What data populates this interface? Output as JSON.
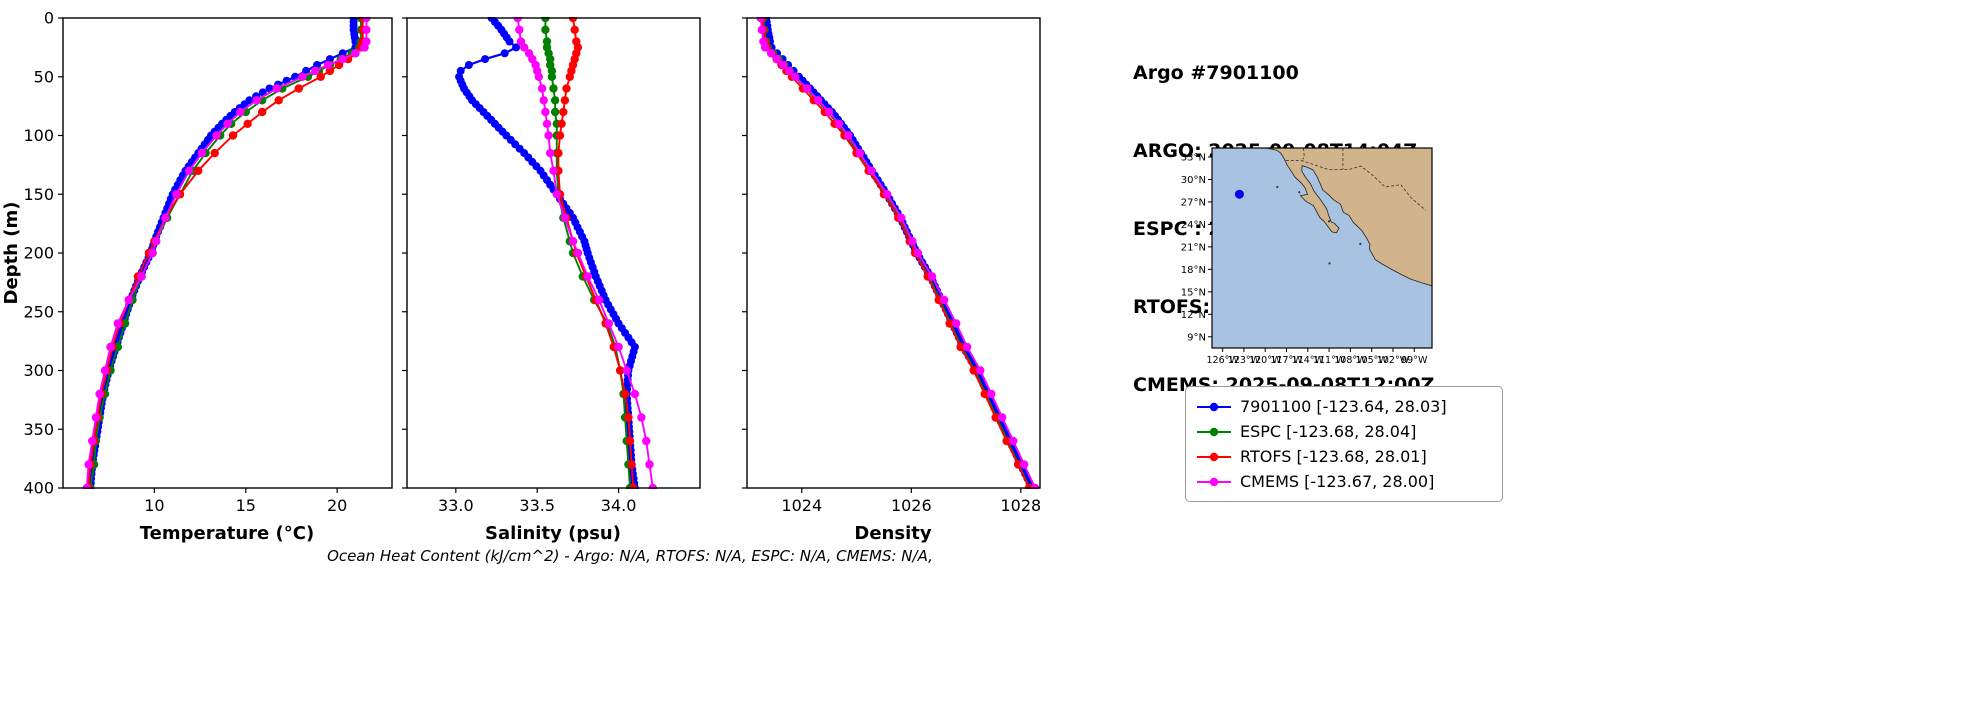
{
  "header": {
    "title": "Argo #7901100",
    "lines": [
      "ARGO: 2025-09-08T14:04Z",
      "ESPC : 2025-09-08T15:00Z",
      "RTOFS: 2025-09-08T12:00Z",
      "CMEMS: 2025-09-08T12:00Z"
    ]
  },
  "footer": {
    "note": "Ocean Heat Content (kJ/cm^2) - Argo: N/A,  RTOFS: N/A,  ESPC: N/A,  CMEMS: N/A,"
  },
  "legend": {
    "entries": [
      {
        "label": "7901100 [-123.64, 28.03]",
        "color": "#0000ff"
      },
      {
        "label": "ESPC [-123.68, 28.04]",
        "color": "#008000"
      },
      {
        "label": "RTOFS [-123.68, 28.01]",
        "color": "#ff0000"
      },
      {
        "label": "CMEMS [-123.67, 28.00]",
        "color": "#ff00ff"
      }
    ]
  },
  "map": {
    "ocean_color": "#a8c3e2",
    "land_color": "#d2b48c",
    "extent": {
      "lon": [
        -127.5,
        -96.5
      ],
      "lat": [
        7.5,
        34.2
      ]
    },
    "marker": {
      "lon": -123.64,
      "lat": 28.03,
      "color": "#0000ee"
    },
    "lat_ticks": [
      {
        "label": "33°N",
        "value": 33
      },
      {
        "label": "30°N",
        "value": 30
      },
      {
        "label": "27°N",
        "value": 27
      },
      {
        "label": "24°N",
        "value": 24
      },
      {
        "label": "21°N",
        "value": 21
      },
      {
        "label": "18°N",
        "value": 18
      },
      {
        "label": "15°N",
        "value": 15
      },
      {
        "label": "12°N",
        "value": 12
      },
      {
        "label": "9°N",
        "value": 9
      }
    ],
    "lon_ticks": [
      {
        "label": "126°W",
        "value": -126
      },
      {
        "label": "123°W",
        "value": -123
      },
      {
        "label": "120°W",
        "value": -120
      },
      {
        "label": "117°W",
        "value": -117
      },
      {
        "label": "114°W",
        "value": -114
      },
      {
        "label": "111°W",
        "value": -111
      },
      {
        "label": "108°W",
        "value": -108
      },
      {
        "label": "105°W",
        "value": -105
      },
      {
        "label": "102°W",
        "value": -102
      },
      {
        "label": "99°W",
        "value": -99
      }
    ]
  },
  "chart_data": {
    "type": "line",
    "ylabel": "Depth (m)",
    "ylim": [
      0,
      400
    ],
    "depth_ticks": [
      0,
      50,
      100,
      150,
      200,
      250,
      300,
      350,
      400
    ],
    "depth_m": [
      0,
      10,
      20,
      25,
      30,
      35,
      40,
      45,
      50,
      60,
      70,
      80,
      90,
      100,
      115,
      130,
      150,
      170,
      190,
      200,
      220,
      240,
      260,
      280,
      300,
      320,
      340,
      360,
      380,
      400
    ],
    "grid": false,
    "legend_position": "right",
    "panels": [
      {
        "id": "temperature",
        "xlabel": "Temperature (°C)",
        "xlim": [
          5.0,
          23.0
        ],
        "xticks": [
          "10",
          "15",
          "20"
        ],
        "series": [
          {
            "name": "7901100",
            "color": "#0000ff",
            "values": [
              20.9,
              20.9,
              21.0,
              21.0,
              20.3,
              19.6,
              18.9,
              18.3,
              17.7,
              16.3,
              15.2,
              14.4,
              13.7,
              13.1,
              12.4,
              11.7,
              11.0,
              10.5,
              10.0,
              9.8,
              9.2,
              8.7,
              8.3,
              7.9,
              7.5,
              7.2,
              7.0,
              6.8,
              6.6,
              6.5
            ]
          },
          {
            "name": "ESPC",
            "color": "#008000",
            "values": [
              21.3,
              21.3,
              21.3,
              21.2,
              20.8,
              20.2,
              19.6,
              19.0,
              18.4,
              17.0,
              15.9,
              15.0,
              14.2,
              13.6,
              12.8,
              12.1,
              11.4,
              10.7,
              10.1,
              9.9,
              9.3,
              8.8,
              8.4,
              8.0,
              7.6,
              7.3,
              7.0,
              6.8,
              6.7,
              6.5
            ]
          },
          {
            "name": "RTOFS",
            "color": "#ff0000",
            "values": [
              21.4,
              21.4,
              21.4,
              21.3,
              21.0,
              20.6,
              20.1,
              19.6,
              19.1,
              17.9,
              16.8,
              15.9,
              15.1,
              14.3,
              13.3,
              12.4,
              11.4,
              10.6,
              10.0,
              9.7,
              9.1,
              8.6,
              8.1,
              7.7,
              7.4,
              7.1,
              6.9,
              6.7,
              6.5,
              6.4
            ]
          },
          {
            "name": "CMEMS",
            "color": "#ff00ff",
            "values": [
              21.6,
              21.6,
              21.6,
              21.5,
              21.0,
              20.3,
              19.5,
              18.8,
              18.1,
              16.7,
              15.6,
              14.7,
              14.0,
              13.4,
              12.6,
              11.9,
              11.2,
              10.6,
              10.1,
              9.9,
              9.3,
              8.6,
              8.0,
              7.6,
              7.3,
              7.0,
              6.8,
              6.6,
              6.4,
              6.3
            ]
          }
        ]
      },
      {
        "id": "salinity",
        "xlabel": "Salinity (psu)",
        "xlim": [
          32.7,
          34.5
        ],
        "xticks": [
          "33.0",
          "33.5",
          "34.0"
        ],
        "series": [
          {
            "name": "7901100",
            "color": "#0000ff",
            "values": [
              33.22,
              33.28,
              33.33,
              33.37,
              33.3,
              33.18,
              33.08,
              33.03,
              33.02,
              33.05,
              33.1,
              33.17,
              33.24,
              33.31,
              33.42,
              33.52,
              33.62,
              33.72,
              33.79,
              33.81,
              33.86,
              33.92,
              34.0,
              34.1,
              34.06,
              34.05,
              34.06,
              34.07,
              34.08,
              34.1
            ]
          },
          {
            "name": "ESPC",
            "color": "#008000",
            "values": [
              33.55,
              33.55,
              33.56,
              33.56,
              33.57,
              33.58,
              33.58,
              33.59,
              33.59,
              33.6,
              33.61,
              33.61,
              33.62,
              33.62,
              33.62,
              33.62,
              33.63,
              33.66,
              33.7,
              33.72,
              33.78,
              33.85,
              33.93,
              33.98,
              34.01,
              34.03,
              34.04,
              34.05,
              34.06,
              34.07
            ]
          },
          {
            "name": "RTOFS",
            "color": "#ff0000",
            "values": [
              33.72,
              33.73,
              33.74,
              33.75,
              33.74,
              33.73,
              33.72,
              33.71,
              33.7,
              33.68,
              33.67,
              33.66,
              33.65,
              33.64,
              33.63,
              33.63,
              33.64,
              33.68,
              33.72,
              33.74,
              33.8,
              33.86,
              33.92,
              33.97,
              34.01,
              34.04,
              34.06,
              34.07,
              34.08,
              34.09
            ]
          },
          {
            "name": "CMEMS",
            "color": "#ff00ff",
            "values": [
              33.38,
              33.39,
              33.4,
              33.42,
              33.45,
              33.47,
              33.49,
              33.5,
              33.51,
              33.53,
              33.54,
              33.55,
              33.56,
              33.57,
              33.58,
              33.6,
              33.62,
              33.67,
              33.72,
              33.75,
              33.81,
              33.88,
              33.94,
              34.0,
              34.05,
              34.1,
              34.14,
              34.17,
              34.19,
              34.21
            ]
          }
        ]
      },
      {
        "id": "density",
        "xlabel": "Density",
        "xlim": [
          1023.0,
          1028.35
        ],
        "xticks": [
          "1024",
          "1026",
          "1028"
        ],
        "series": [
          {
            "name": "7901100",
            "color": "#0000ff",
            "values": [
              1023.35,
              1023.38,
              1023.42,
              1023.45,
              1023.55,
              1023.65,
              1023.75,
              1023.85,
              1023.95,
              1024.15,
              1024.35,
              1024.55,
              1024.72,
              1024.88,
              1025.08,
              1025.28,
              1025.55,
              1025.8,
              1026.0,
              1026.1,
              1026.35,
              1026.55,
              1026.75,
              1026.95,
              1027.2,
              1027.4,
              1027.6,
              1027.8,
              1028.0,
              1028.2
            ]
          },
          {
            "name": "ESPC",
            "color": "#008000",
            "values": [
              1023.3,
              1023.32,
              1023.35,
              1023.38,
              1023.48,
              1023.58,
              1023.68,
              1023.78,
              1023.88,
              1024.08,
              1024.28,
              1024.48,
              1024.66,
              1024.82,
              1025.04,
              1025.24,
              1025.52,
              1025.78,
              1025.98,
              1026.08,
              1026.32,
              1026.52,
              1026.72,
              1026.92,
              1027.16,
              1027.36,
              1027.56,
              1027.76,
              1027.96,
              1028.16
            ]
          },
          {
            "name": "RTOFS",
            "color": "#ff0000",
            "values": [
              1023.28,
              1023.3,
              1023.33,
              1023.36,
              1023.45,
              1023.54,
              1023.63,
              1023.72,
              1023.82,
              1024.02,
              1024.22,
              1024.42,
              1024.6,
              1024.78,
              1025.0,
              1025.22,
              1025.5,
              1025.76,
              1025.97,
              1026.07,
              1026.3,
              1026.5,
              1026.7,
              1026.9,
              1027.14,
              1027.34,
              1027.54,
              1027.74,
              1027.95,
              1028.15
            ]
          },
          {
            "name": "CMEMS",
            "color": "#ff00ff",
            "values": [
              1023.25,
              1023.27,
              1023.3,
              1023.33,
              1023.44,
              1023.55,
              1023.66,
              1023.77,
              1023.88,
              1024.1,
              1024.3,
              1024.5,
              1024.68,
              1024.85,
              1025.06,
              1025.27,
              1025.56,
              1025.82,
              1026.02,
              1026.12,
              1026.38,
              1026.6,
              1026.82,
              1027.02,
              1027.26,
              1027.46,
              1027.66,
              1027.86,
              1028.06,
              1028.26
            ]
          }
        ]
      }
    ]
  }
}
